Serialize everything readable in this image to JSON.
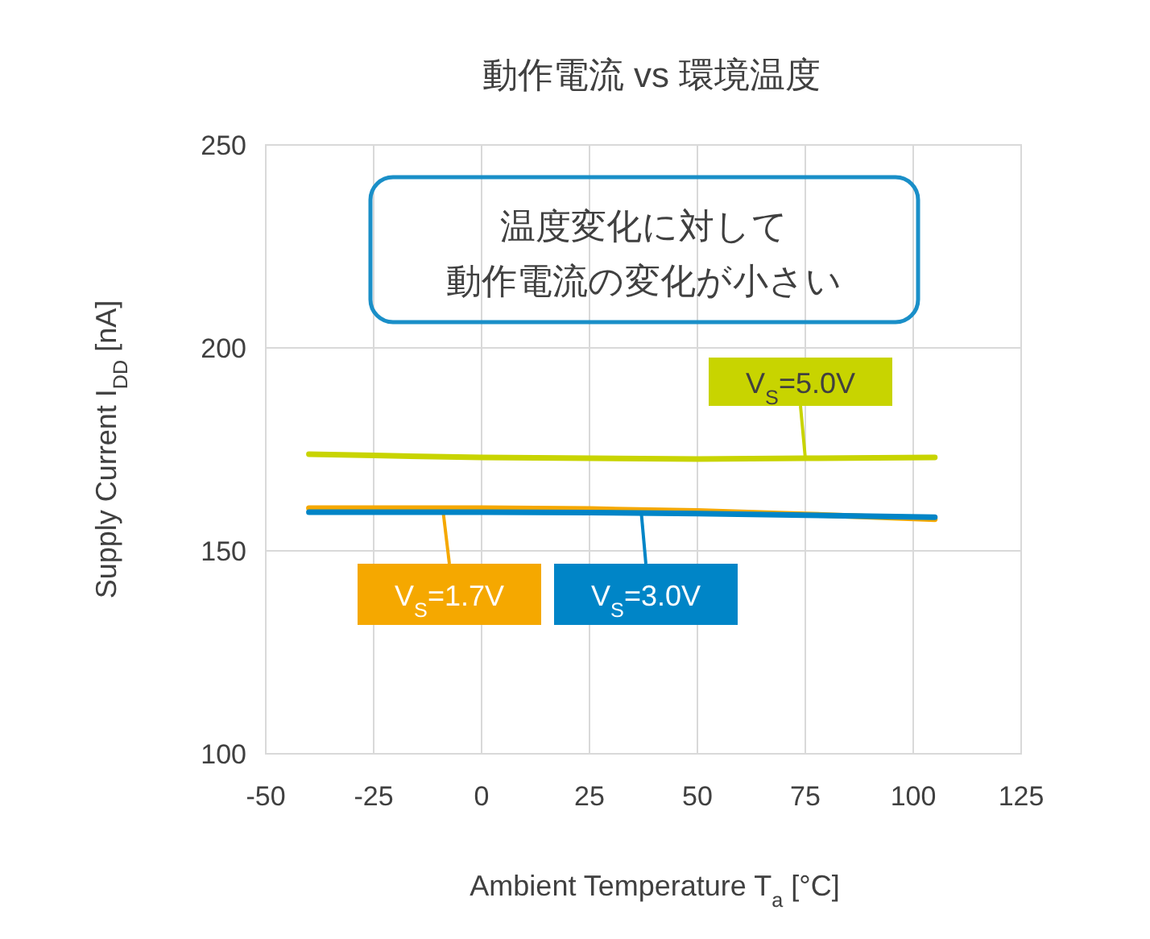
{
  "chart_data": {
    "type": "line",
    "title": "動作電流 vs 環境温度",
    "xlabel": "Ambient Temperature T$_{a}$ [°C]",
    "ylabel": "Supply Current I$_{DD}$ [nA]",
    "xlim": [
      -50,
      125
    ],
    "xticks": [
      -50,
      -25,
      0,
      25,
      50,
      75,
      100,
      125
    ],
    "ylim": [
      100,
      250
    ],
    "yticks": [
      100,
      150,
      200,
      250
    ],
    "grid": true,
    "legend": "bottom",
    "marker": "none",
    "line_style": "solid",
    "x": [
      -40,
      -25,
      0,
      25,
      50,
      75,
      105
    ],
    "series": [
      {
        "name": "V$_{S}$=5.0V",
        "color": "#c8d400",
        "values": [
          173.8,
          173.5,
          173,
          172.8,
          172.6,
          172.8,
          173
        ]
      },
      {
        "name": "V$_{S}$=1.7V",
        "color": "#f5a800",
        "values": [
          160.5,
          160.5,
          160.5,
          160.3,
          159.8,
          159,
          157.8
        ]
      },
      {
        "name": "V$_{S}$=3.0V",
        "color": "#0085c7",
        "values": [
          159.5,
          159.5,
          159.5,
          159.4,
          159.2,
          158.8,
          158.3
        ]
      }
    ],
    "annotations": [
      "温度変化に対して",
      "動作電流の変化が小さい"
    ]
  }
}
